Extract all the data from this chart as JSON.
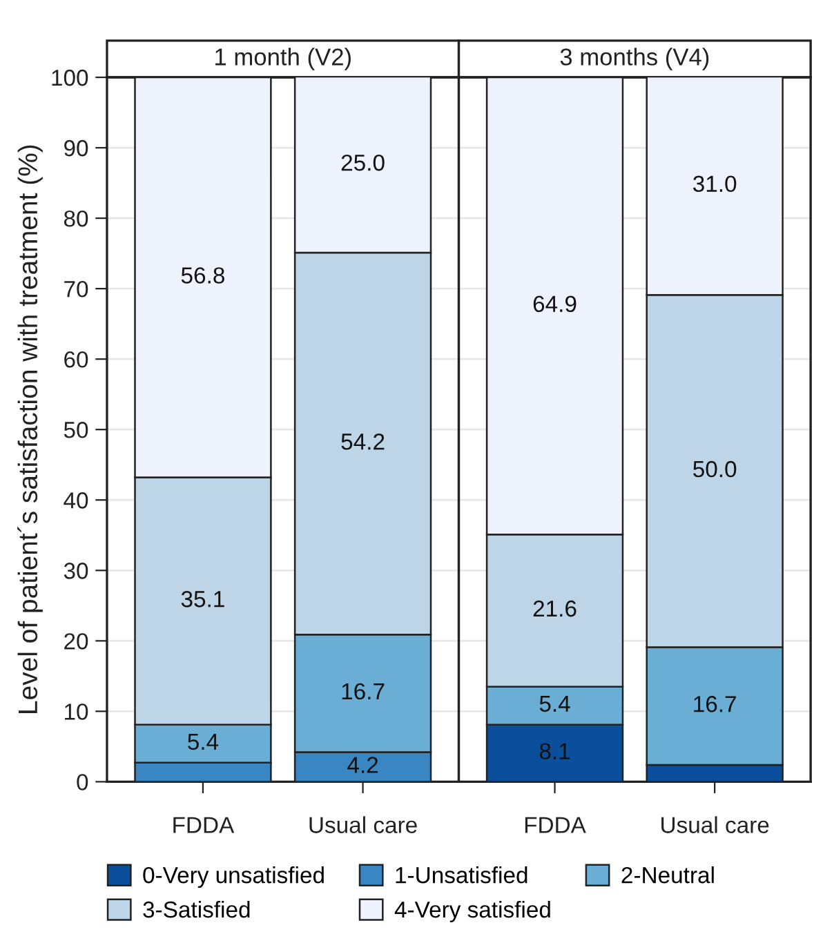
{
  "chart_data": [
    {
      "type": "bar",
      "stacked": true,
      "title": "1 month (V2)",
      "ylabel": "Level of patient´s satisfaction with treatment (%)",
      "categories": [
        "FDDA",
        "Usual care"
      ],
      "ylim": [
        0,
        100
      ],
      "yticks": [
        0,
        10,
        20,
        30,
        40,
        50,
        60,
        70,
        80,
        90,
        100
      ],
      "grid": "y",
      "legend": "bottom",
      "series": [
        {
          "name": "0-Very unsatisfied",
          "color": "#0b4f9c",
          "values": [
            0,
            0
          ],
          "value_labels": [
            null,
            null
          ]
        },
        {
          "name": "1-Unsatisfied",
          "color": "#3a86c2",
          "values": [
            2.7,
            4.2
          ],
          "value_labels": [
            null,
            "4.2"
          ]
        },
        {
          "name": "2-Neutral",
          "color": "#6aaed6",
          "values": [
            5.4,
            16.7
          ],
          "value_labels": [
            "5.4",
            "16.7"
          ]
        },
        {
          "name": "3-Satisfied",
          "color": "#bdd5e6",
          "values": [
            35.1,
            54.2
          ],
          "value_labels": [
            "35.1",
            "54.2"
          ]
        },
        {
          "name": "4-Very satisfied",
          "color": "#eef2fc",
          "values": [
            56.8,
            25.0
          ],
          "value_labels": [
            "56.8",
            "25.0"
          ]
        }
      ]
    },
    {
      "type": "bar",
      "stacked": true,
      "title": "3 months (V4)",
      "categories": [
        "FDDA",
        "Usual care"
      ],
      "ylim": [
        0,
        100
      ],
      "yticks": [
        0,
        10,
        20,
        30,
        40,
        50,
        60,
        70,
        80,
        90,
        100
      ],
      "grid": "y",
      "tick_labels": "x",
      "series": [
        {
          "color": "#0b4f9c",
          "values": [
            8.1,
            2.4
          ],
          "value_labels": [
            "8.1",
            null
          ]
        },
        {
          "color": "#3a86c2",
          "values": [
            0,
            0
          ],
          "value_labels": [
            null,
            null
          ]
        },
        {
          "color": "#6aaed6",
          "values": [
            5.4,
            16.7
          ],
          "value_labels": [
            "5.4",
            "16.7"
          ]
        },
        {
          "color": "#bdd5e6",
          "values": [
            21.6,
            50.0
          ],
          "value_labels": [
            "21.6",
            "50.0"
          ]
        },
        {
          "color": "#eef2fc",
          "values": [
            64.9,
            31.0
          ],
          "value_labels": [
            "64.9",
            "31.0"
          ]
        }
      ]
    }
  ]
}
